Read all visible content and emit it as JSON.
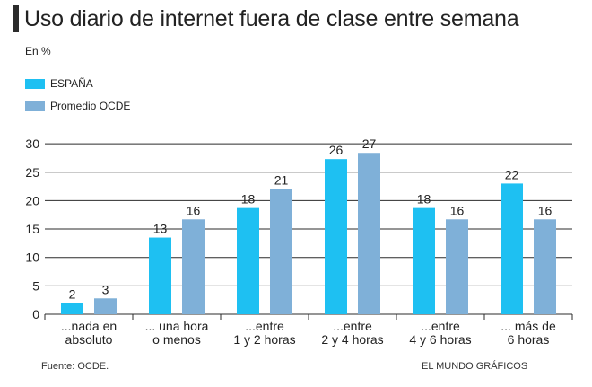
{
  "title": "Uso diario de internet fuera de clase entre semana",
  "unit": "En %",
  "footer": {
    "source": "Fuente: OCDE.",
    "credit": "EL MUNDO GRÁFICOS"
  },
  "colors": {
    "spain": "#1ec0f2",
    "ocde": "#7fb0d8",
    "grid": "#2b2b2b"
  },
  "chart_data": {
    "type": "bar",
    "title": "Uso diario de internet fuera de clase entre semana",
    "ylabel": "En %",
    "ylim": [
      0,
      30
    ],
    "yticks": [
      0,
      5,
      10,
      15,
      20,
      25,
      30
    ],
    "grid": true,
    "legend_position": "top-left",
    "categories": [
      [
        "...nada en",
        "absoluto"
      ],
      [
        "... una hora",
        "o menos"
      ],
      [
        "...entre",
        "1 y 2 horas"
      ],
      [
        "...entre",
        "2 y 4 horas"
      ],
      [
        "...entre",
        "4 y 6 horas"
      ],
      [
        "... más de",
        "6 horas"
      ]
    ],
    "series": [
      {
        "name": "ESPAÑA",
        "color": "#1ec0f2",
        "values": [
          2,
          13,
          18,
          26,
          18,
          22
        ],
        "heights": [
          2,
          13.5,
          18.7,
          27.3,
          18.7,
          23
        ]
      },
      {
        "name": "Promedio OCDE",
        "color": "#7fb0d8",
        "values": [
          3,
          16,
          21,
          27,
          16,
          16
        ],
        "heights": [
          2.8,
          16.7,
          22,
          28.4,
          16.7,
          16.7
        ]
      }
    ]
  }
}
